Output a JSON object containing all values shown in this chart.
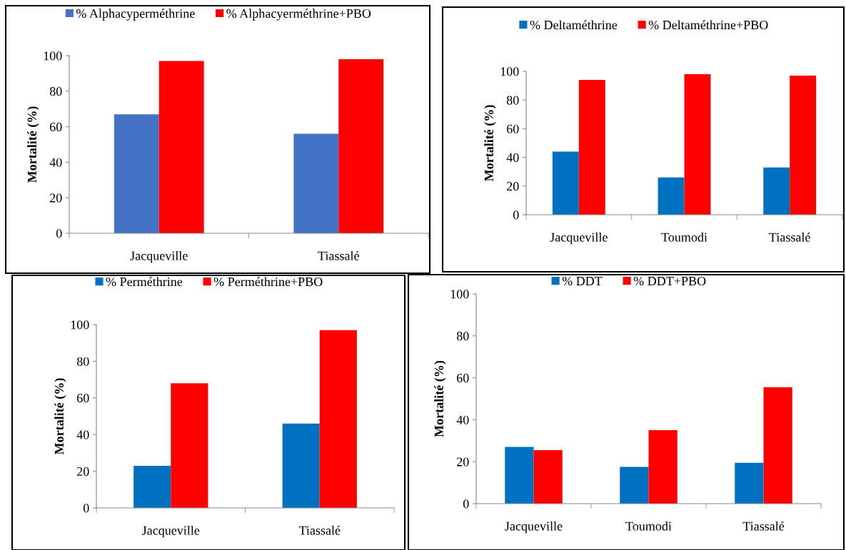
{
  "chart_data": [
    {
      "type": "bar",
      "ylabel": "Mortalité (%)",
      "categories": [
        "Jacqueville",
        "Tiassalé"
      ],
      "ylim": [
        0,
        100
      ],
      "yticks": [
        0,
        20,
        40,
        60,
        80,
        100
      ],
      "legend": "top",
      "series": [
        {
          "name": "% Alphacyperméthrine",
          "color": "#4472c4",
          "values": [
            67,
            56
          ]
        },
        {
          "name": "% Alphacyerméthrine+PBO",
          "color": "#ff0000",
          "values": [
            97,
            98
          ]
        }
      ]
    },
    {
      "type": "bar",
      "ylabel": "Mortalité (%)",
      "categories": [
        "Jacqueville",
        "Toumodi",
        "Tiassalé"
      ],
      "ylim": [
        0,
        100
      ],
      "yticks": [
        0,
        20,
        40,
        60,
        80,
        100
      ],
      "legend": "top",
      "series": [
        {
          "name": "% Deltaméthrine",
          "color": "#0070c0",
          "values": [
            44,
            26,
            33
          ]
        },
        {
          "name": "% Deltaméthrine+PBO",
          "color": "#ff0000",
          "values": [
            94,
            98,
            97
          ]
        }
      ]
    },
    {
      "type": "bar",
      "ylabel": "Mortalité (%)",
      "categories": [
        "Jacqueville",
        "Tiassalé"
      ],
      "ylim": [
        0,
        100
      ],
      "yticks": [
        0,
        20,
        40,
        60,
        80,
        100
      ],
      "legend": "top",
      "series": [
        {
          "name": "% Perméthrine",
          "color": "#0070c0",
          "values": [
            23,
            46
          ]
        },
        {
          "name": "% Perméthrine+PBO",
          "color": "#ff0000",
          "values": [
            68,
            97
          ]
        }
      ]
    },
    {
      "type": "bar",
      "ylabel": "Mortalité (%)",
      "categories": [
        "Jacqueville",
        "Toumodi",
        "Tiassalé"
      ],
      "ylim": [
        0,
        100
      ],
      "yticks": [
        0,
        20,
        40,
        60,
        80,
        100
      ],
      "legend": "top",
      "series": [
        {
          "name": "% DDT",
          "color": "#0070c0",
          "values": [
            27,
            17.5,
            19.5
          ]
        },
        {
          "name": "% DDT+PBO",
          "color": "#ff0000",
          "values": [
            25.5,
            35,
            55.5
          ]
        }
      ]
    }
  ]
}
